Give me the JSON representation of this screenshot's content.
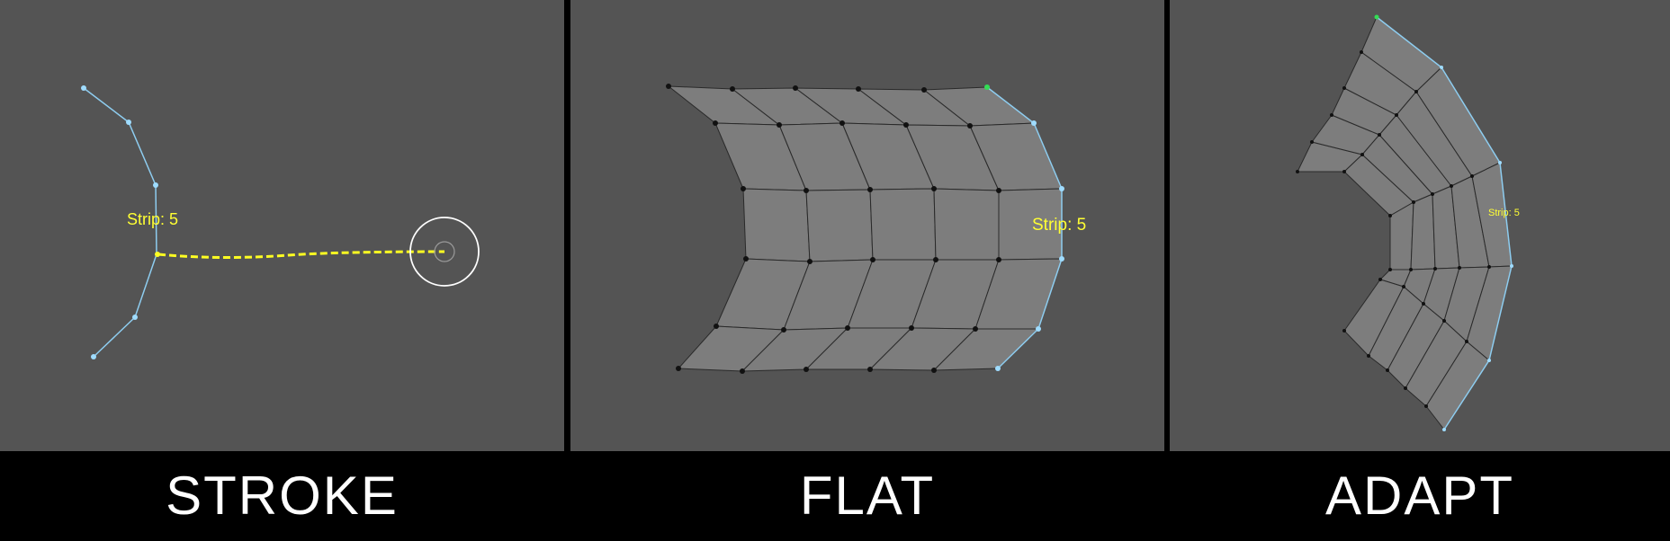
{
  "panels": [
    {
      "caption": "STROKE",
      "strip_label": "Strip: 5"
    },
    {
      "caption": "FLAT",
      "strip_label": "Strip: 5"
    },
    {
      "caption": "ADAPT",
      "strip_label": "Strip: 5"
    }
  ],
  "colors": {
    "background": "#545454",
    "face": "#7d7d7d",
    "edge": "#2a2a2a",
    "vertex": "#111111",
    "selected_edge": "#8ecdf0",
    "selected_vertex": "#9fdcff",
    "active_vertex": "#33dd55",
    "stroke_line": "#ffff22",
    "label": "#ffff33",
    "cursor": "#ffffff"
  }
}
